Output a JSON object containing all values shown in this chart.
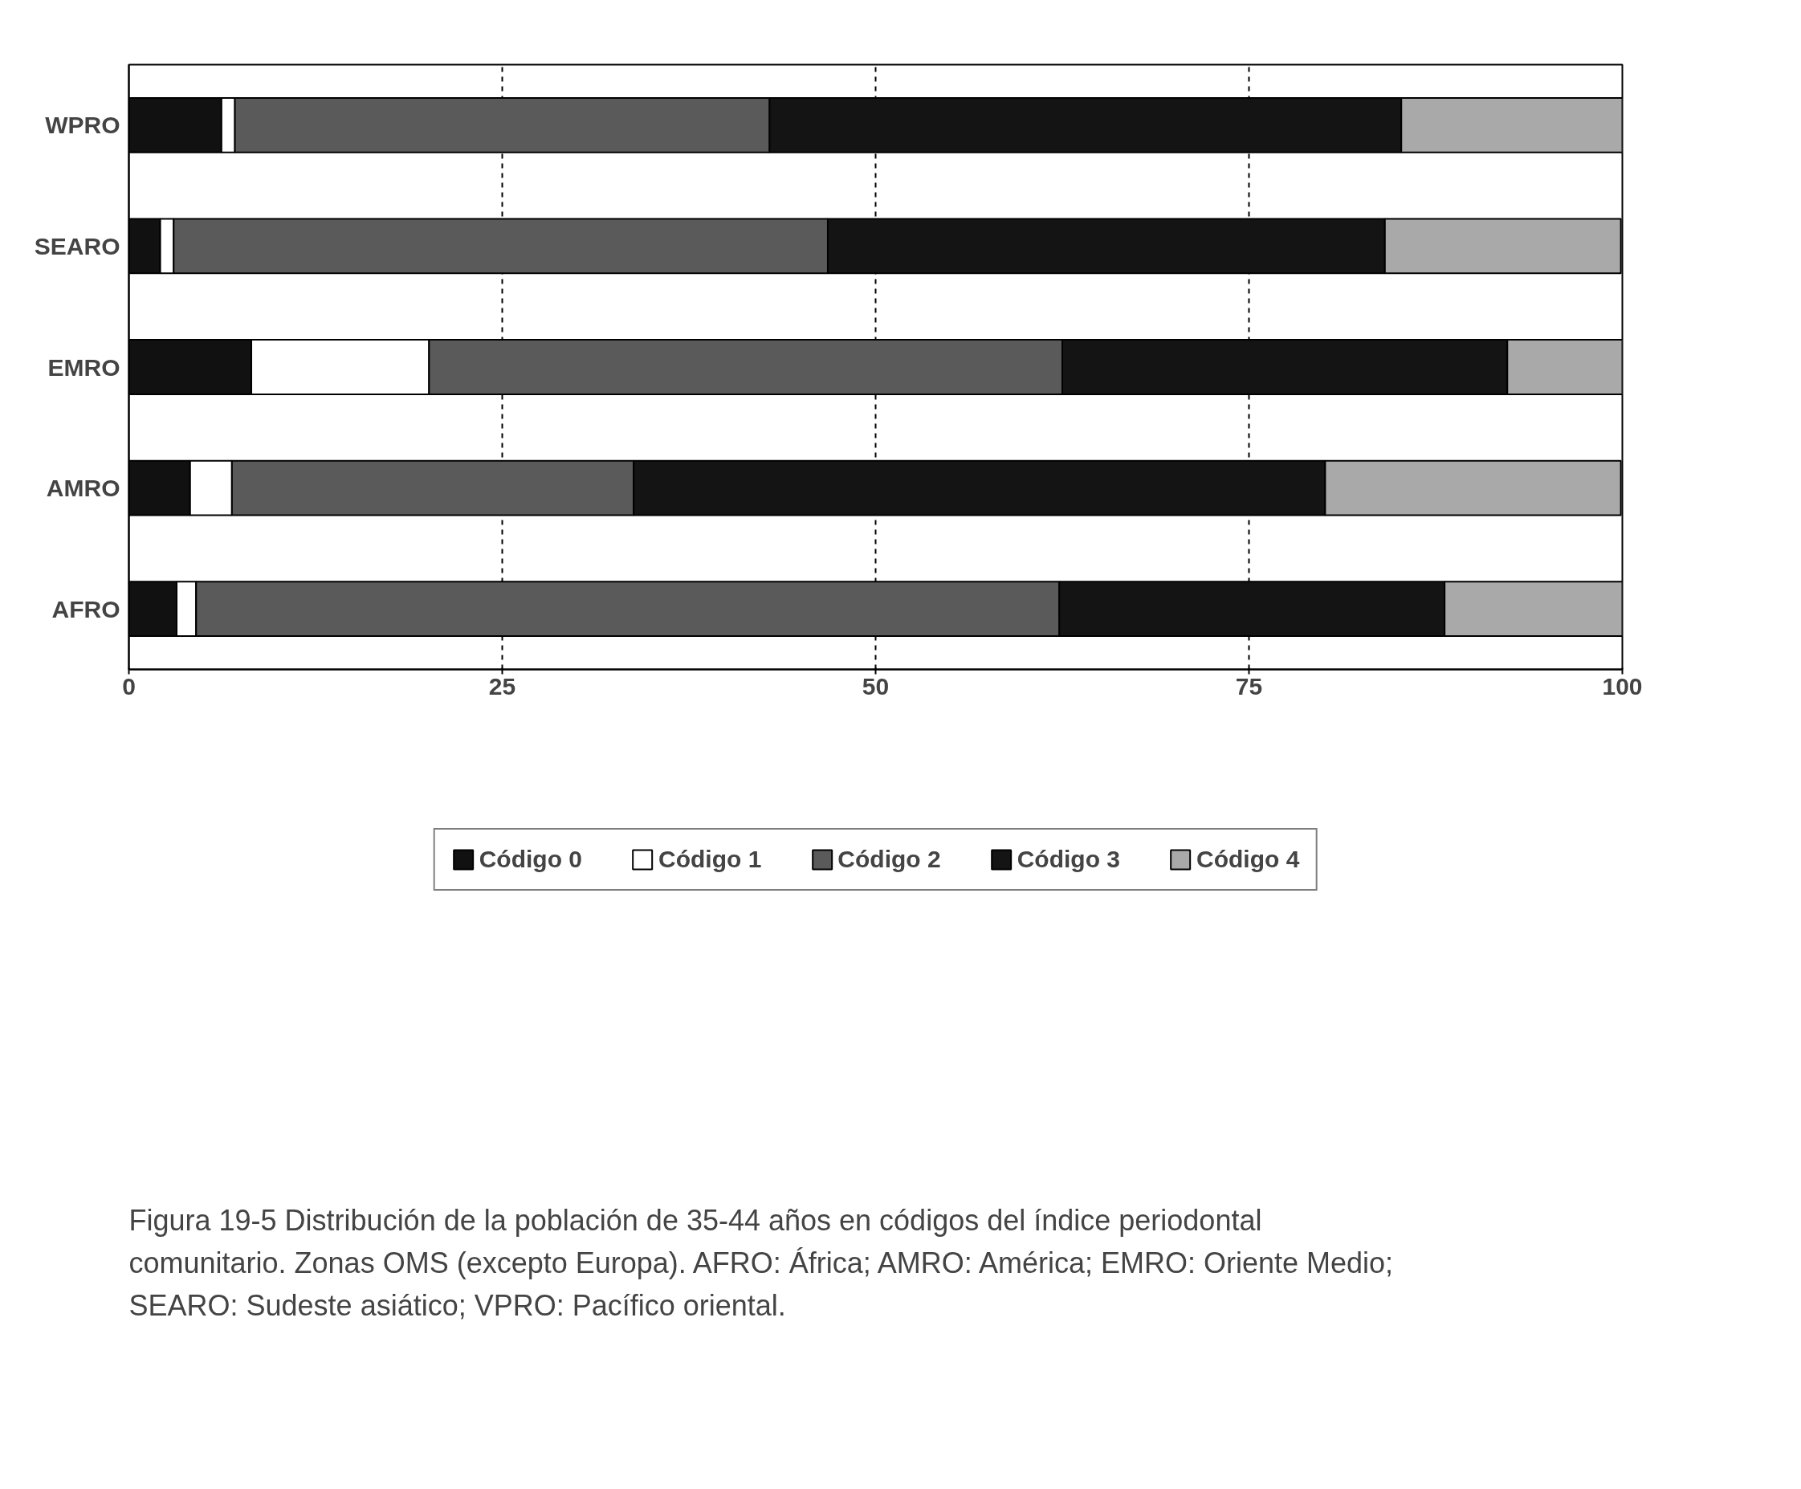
{
  "chart_data": {
    "type": "bar",
    "orientation": "horizontal",
    "stacked": true,
    "categories": [
      "WPRO",
      "SEARO",
      "EMRO",
      "AMRO",
      "AFRO"
    ],
    "series": [
      {
        "name": "Código 0",
        "color": "#111111",
        "values": [
          6.2,
          2.1,
          8.2,
          4.1,
          3.2
        ]
      },
      {
        "name": "Código 1",
        "color": "#ffffff",
        "values": [
          0.9,
          0.9,
          11.9,
          2.8,
          1.3
        ]
      },
      {
        "name": "Código 2",
        "color": "#5a5a5a",
        "values": [
          35.8,
          43.8,
          42.4,
          26.9,
          57.8
        ]
      },
      {
        "name": "Código 3",
        "color": "#141414",
        "values": [
          42.3,
          37.3,
          29.8,
          46.3,
          25.8
        ]
      },
      {
        "name": "Código 4",
        "color": "#a9a9a9",
        "values": [
          14.8,
          15.8,
          7.8,
          19.8,
          11.9
        ]
      }
    ],
    "xlim": [
      0,
      100
    ],
    "xticks": [
      0,
      25,
      50,
      75,
      100
    ],
    "grid": "x",
    "legend": "bottom",
    "annotations": [
      "Figura 19-5    Distribución de la población de 35-44 años en códigos del índice periodontal comunitario. Zonas OMS (excepto Europa). AFRO: África; AMRO: América; EMRO: Oriente Medio; SEARO: Sudeste asiático; VPRO: Pacífico oriental."
    ]
  }
}
